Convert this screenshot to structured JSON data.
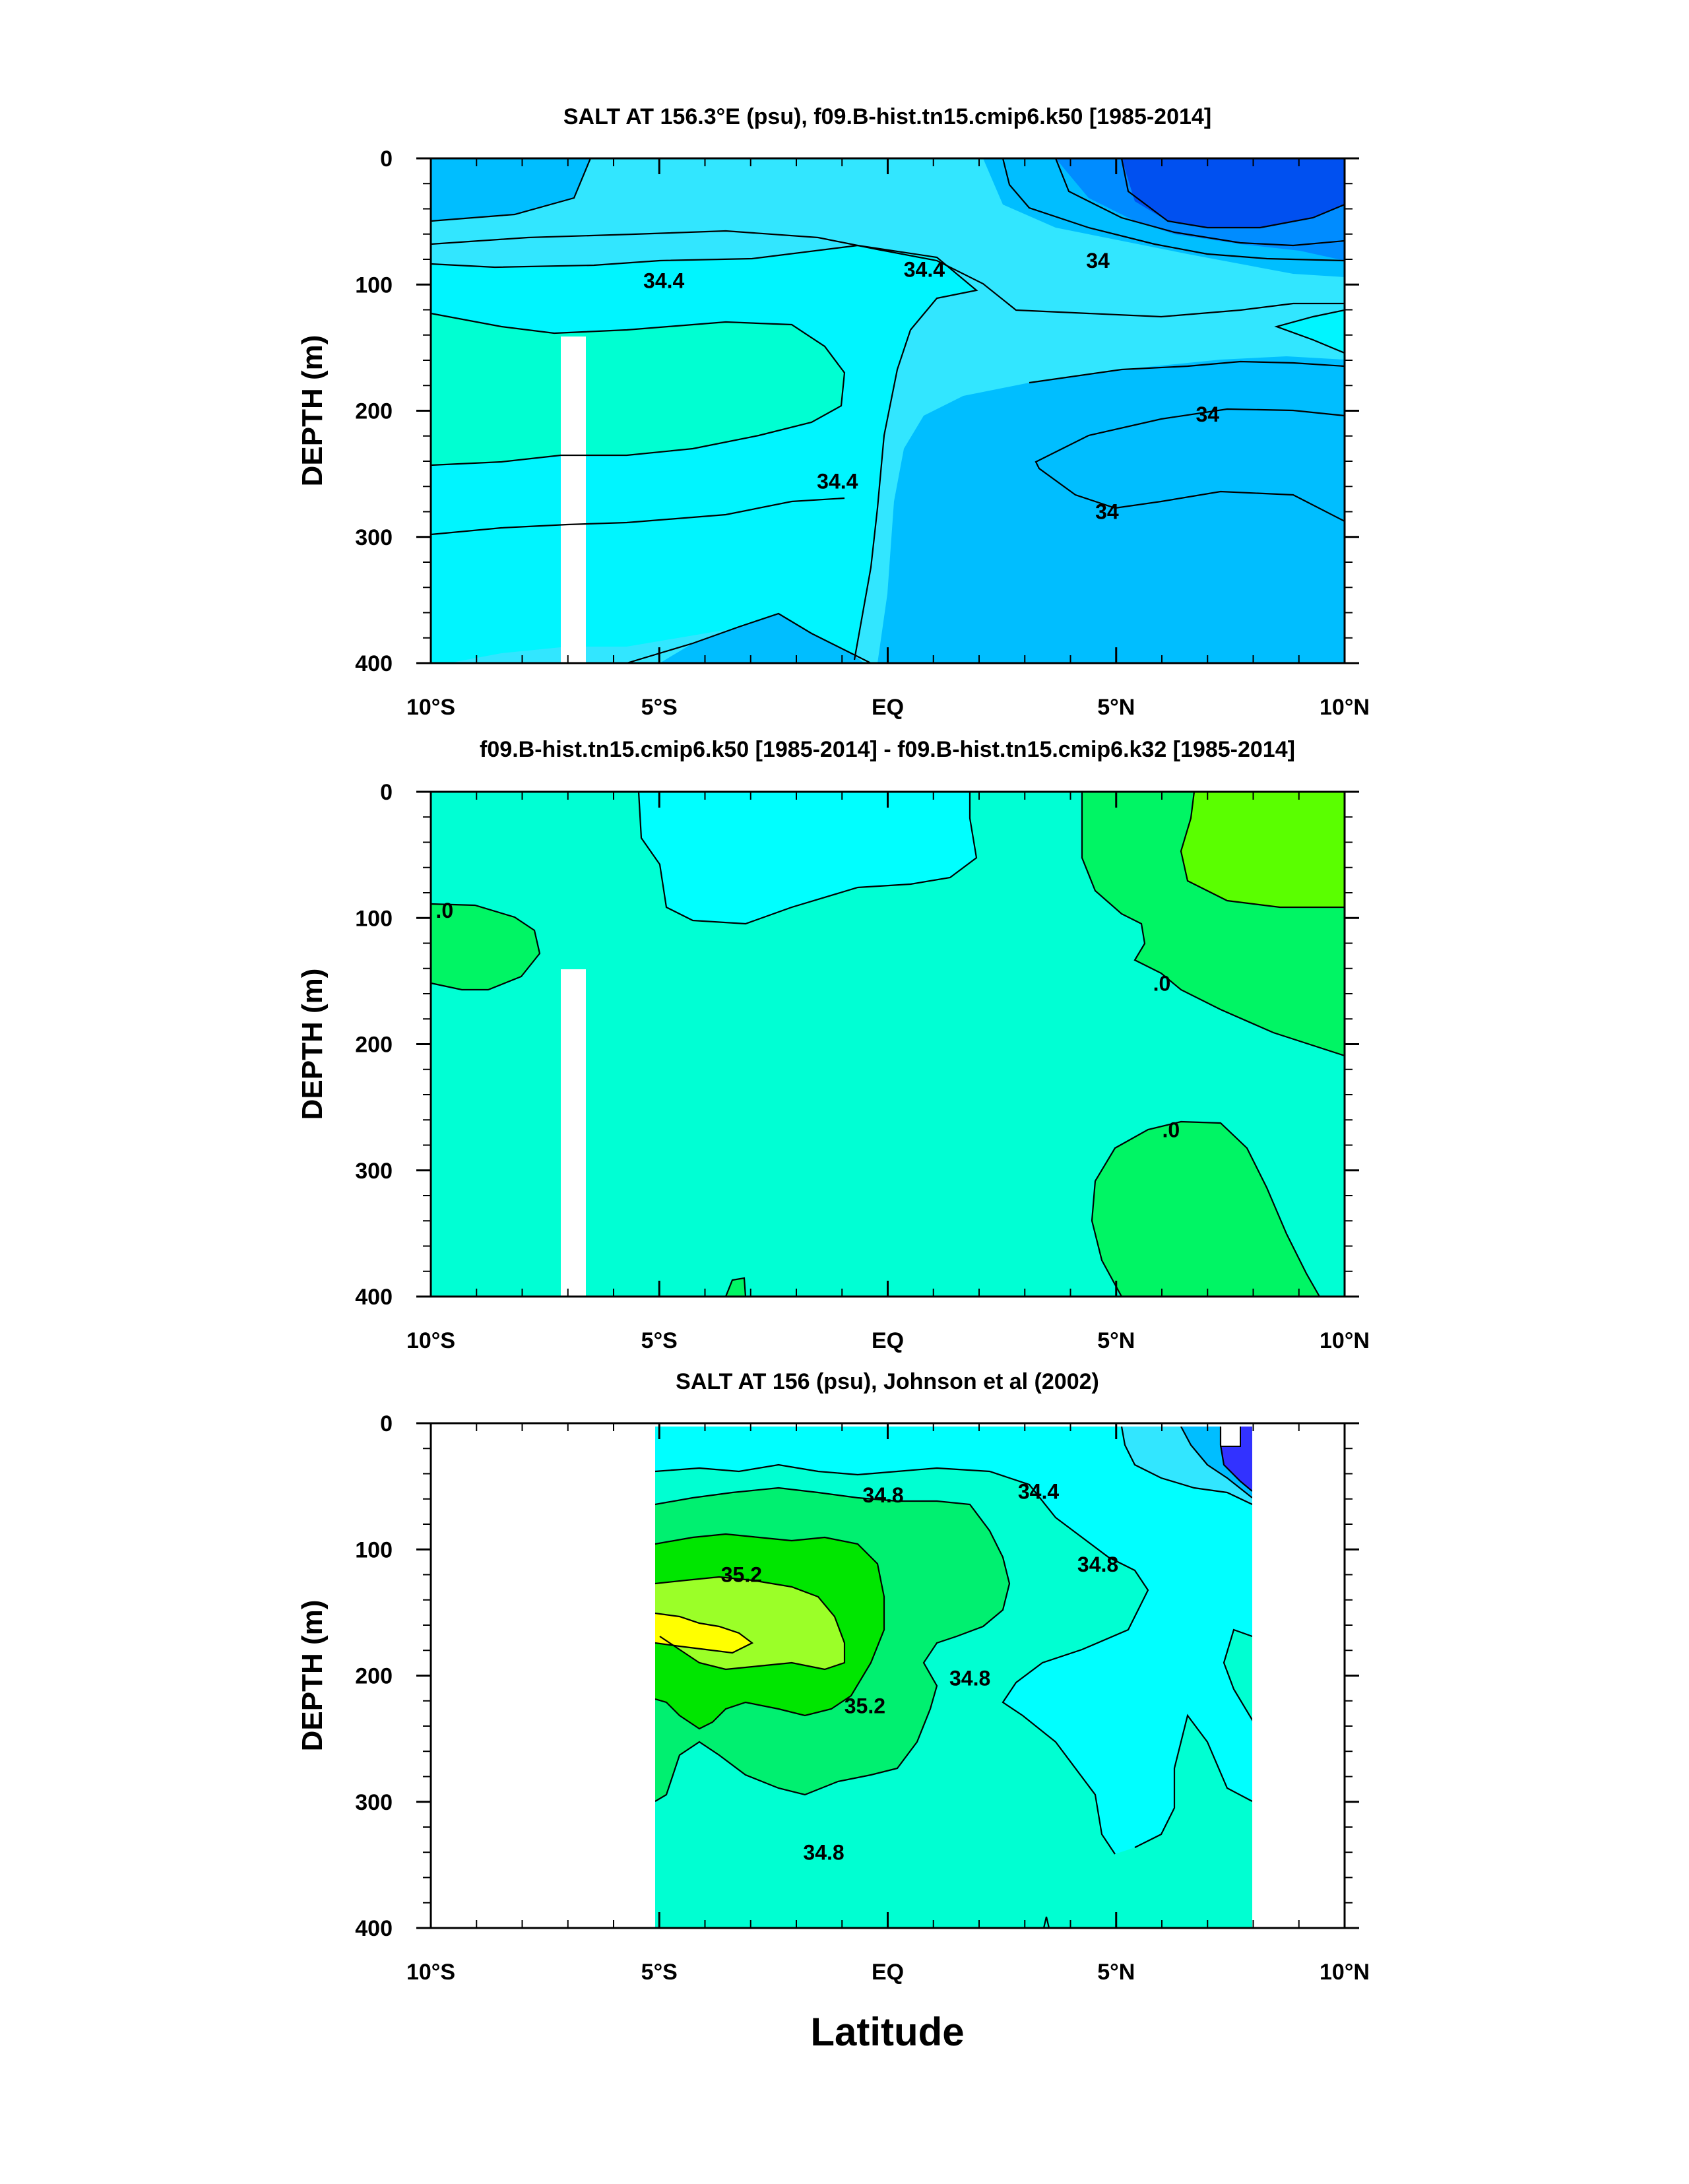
{
  "colors": {
    "s33_4": "#0050f0",
    "s33_8": "#008cff",
    "s34_0": "#00beff",
    "s34_2": "#32e6ff",
    "s34_4": "#00f5ff",
    "s34_6": "#00ffd2",
    "s34_8": "#00ffa5",
    "s35_0": "#00f070",
    "s35_2": "#00e600",
    "s35_4": "#9bff28",
    "s35_6": "#ffff00",
    "d_neg": "#00ffff",
    "d_zero": "#00ffd4",
    "d_pos1": "#00f564",
    "d_pos2": "#5aff00",
    "obs_cyan": "#00ffff",
    "obs_teal": "#00ffd2",
    "obs_blue": "#3232ff"
  },
  "chart_data": [
    {
      "type": "contour",
      "title": "SALT AT 156.3°E (psu), f09.B-hist.tn15.cmip6.k50 [1985-2014]",
      "xlabel": "",
      "ylabel": "DEPTH (m)",
      "xlim": [
        -10,
        10
      ],
      "ylim": [
        400,
        0
      ],
      "xtick_values": [
        -10,
        -5,
        0,
        5,
        10
      ],
      "xtick_labels": [
        "10°S",
        "5°S",
        "EQ",
        "5°N",
        "10°N"
      ],
      "ytick_values": [
        0,
        100,
        200,
        300,
        400
      ],
      "ytick_labels": [
        "0",
        "100",
        "200",
        "300",
        "400"
      ],
      "contour_labels": [
        {
          "text": "34.4",
          "x": -4.9,
          "y": 97
        },
        {
          "text": "34.4",
          "x": 0.8,
          "y": 88
        },
        {
          "text": "34",
          "x": 4.6,
          "y": 81
        },
        {
          "text": "34",
          "x": 7.0,
          "y": 203
        },
        {
          "text": "34.4",
          "x": -1.1,
          "y": 256
        },
        {
          "text": "34",
          "x": 4.8,
          "y": 280
        }
      ],
      "missing_region": {
        "x": [
          -7.1,
          -6.6
        ],
        "y": [
          144,
          400
        ]
      }
    },
    {
      "type": "contour",
      "title": "f09.B-hist.tn15.cmip6.k50 [1985-2014] - f09.B-hist.tn15.cmip6.k32 [1985-2014]",
      "xlabel": "",
      "ylabel": "DEPTH (m)",
      "xlim": [
        -10,
        10
      ],
      "ylim": [
        400,
        0
      ],
      "xtick_values": [
        -10,
        -5,
        0,
        5,
        10
      ],
      "xtick_labels": [
        "10°S",
        "5°S",
        "EQ",
        "5°N",
        "10°N"
      ],
      "ytick_values": [
        0,
        100,
        200,
        300,
        400
      ],
      "ytick_labels": [
        "0",
        "100",
        "200",
        "300",
        "400"
      ],
      "contour_labels": [
        {
          "text": ".0",
          "x": -9.7,
          "y": 94
        },
        {
          "text": ".0",
          "x": 6.0,
          "y": 152
        },
        {
          "text": ".0",
          "x": 6.2,
          "y": 268
        }
      ],
      "missing_region": {
        "x": [
          -7.1,
          -6.6
        ],
        "y": [
          144,
          400
        ]
      }
    },
    {
      "type": "contour",
      "title": "SALT AT 156 (psu), Johnson et al (2002)",
      "xlabel": "Latitude",
      "ylabel": "DEPTH (m)",
      "xlim": [
        -10,
        10
      ],
      "ylim": [
        400,
        0
      ],
      "xtick_values": [
        -10,
        -5,
        0,
        5,
        10
      ],
      "xtick_labels": [
        "10°S",
        "5°S",
        "EQ",
        "5°N",
        "10°N"
      ],
      "ytick_values": [
        0,
        100,
        200,
        300,
        400
      ],
      "ytick_labels": [
        "0",
        "100",
        "200",
        "300",
        "400"
      ],
      "contour_labels": [
        {
          "text": "34.8",
          "x": -0.1,
          "y": 57
        },
        {
          "text": "34.4",
          "x": 3.3,
          "y": 54
        },
        {
          "text": "35.2",
          "x": -3.2,
          "y": 120
        },
        {
          "text": "34.8",
          "x": 4.6,
          "y": 112
        },
        {
          "text": "35.2",
          "x": -0.5,
          "y": 224
        },
        {
          "text": "34.8",
          "x": 1.8,
          "y": 202
        },
        {
          "text": "34.8",
          "x": -1.4,
          "y": 340
        }
      ],
      "data_region": {
        "x": [
          -5,
          8
        ],
        "y": [
          5,
          400
        ]
      }
    }
  ]
}
